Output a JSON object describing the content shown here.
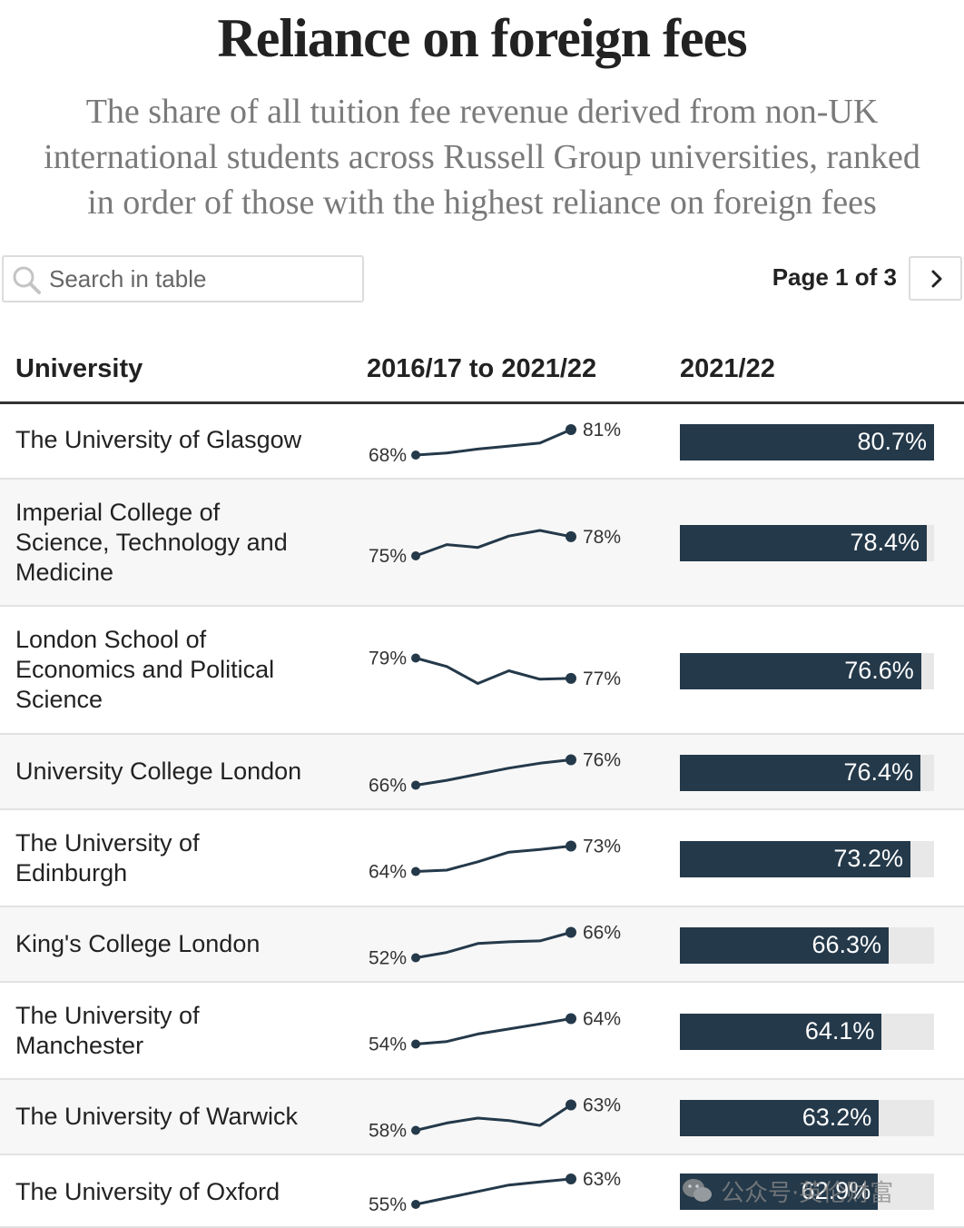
{
  "header": {
    "title": "Reliance on foreign fees",
    "subtitle_lines": [
      "The share of all tuition fee revenue derived from non-UK",
      "international students across Russell Group universities, ranked",
      "in order of those with the highest reliance on foreign fees"
    ]
  },
  "search": {
    "placeholder": "Search in table",
    "value": ""
  },
  "pager": {
    "label": "Page 1 of 3"
  },
  "columns": {
    "university": "University",
    "trend": "2016/17 to 2021/22",
    "latest": "2021/22"
  },
  "colors": {
    "bar": "#24394a",
    "track": "#e8e8e8",
    "line": "#24394a"
  },
  "chart_data": {
    "type": "table",
    "bar_scale": [
      0,
      80.7
    ],
    "rows": [
      {
        "university": "The University of Glasgow",
        "start_label": "68%",
        "end_label": "81%",
        "trend": [
          68,
          69,
          71,
          72.5,
          74,
          80.7
        ],
        "latest": 80.7,
        "latest_label": "80.7%"
      },
      {
        "university": "Imperial College of Science, Technology and Medicine",
        "start_label": "75%",
        "end_label": "78%",
        "trend": [
          75,
          77,
          76.5,
          78.5,
          79.5,
          78.4
        ],
        "latest": 78.4,
        "latest_label": "78.4%"
      },
      {
        "university": "London School of Economics and Political Science",
        "start_label": "79%",
        "end_label": "77%",
        "trend": [
          79,
          78,
          76,
          77.5,
          76.5,
          76.6
        ],
        "latest": 76.6,
        "latest_label": "76.6%"
      },
      {
        "university": "University College London",
        "start_label": "66%",
        "end_label": "76%",
        "trend": [
          66,
          68,
          70.5,
          73,
          75,
          76.4
        ],
        "latest": 76.4,
        "latest_label": "76.4%"
      },
      {
        "university": "The University of Edinburgh",
        "start_label": "64%",
        "end_label": "73%",
        "trend": [
          64,
          64.5,
          67.5,
          71,
          72,
          73.2
        ],
        "latest": 73.2,
        "latest_label": "73.2%"
      },
      {
        "university": "King's College London",
        "start_label": "52%",
        "end_label": "66%",
        "trend": [
          52,
          55,
          60,
          61,
          61.5,
          66.3
        ],
        "latest": 66.3,
        "latest_label": "66.3%"
      },
      {
        "university": "The University of Manchester",
        "start_label": "54%",
        "end_label": "64%",
        "trend": [
          54,
          55,
          58,
          60,
          62,
          64.1
        ],
        "latest": 64.1,
        "latest_label": "64.1%"
      },
      {
        "university": "The University of Warwick",
        "start_label": "58%",
        "end_label": "63%",
        "trend": [
          58,
          59.5,
          60.5,
          60,
          59,
          63.2
        ],
        "latest": 63.2,
        "latest_label": "63.2%"
      },
      {
        "university": "The University of Oxford",
        "start_label": "55%",
        "end_label": "63%",
        "trend": [
          55,
          57,
          59,
          61,
          62,
          62.9
        ],
        "latest": 62.9,
        "latest_label": "62.9%"
      }
    ]
  },
  "watermark": {
    "text": "公众号·英伦财富"
  }
}
